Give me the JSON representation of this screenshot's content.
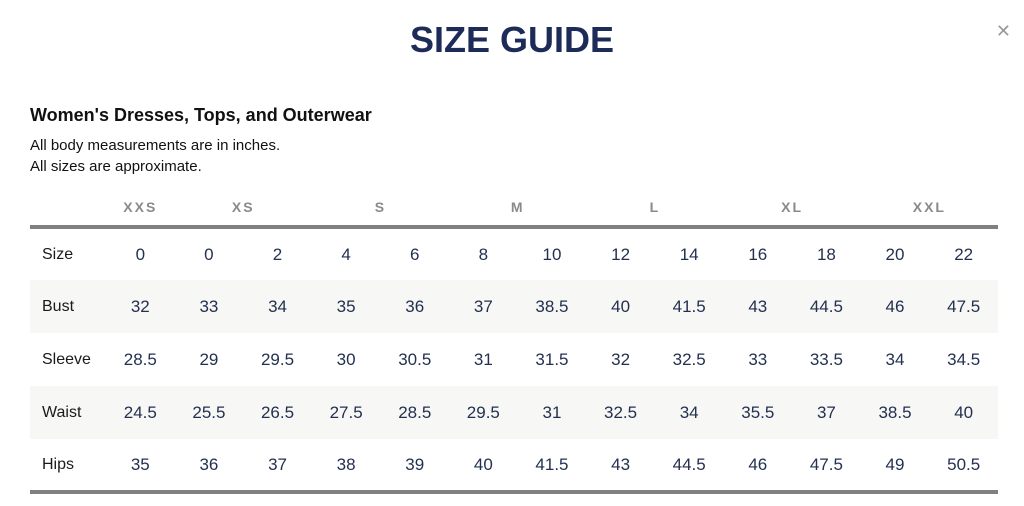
{
  "modal": {
    "close_icon": "✕"
  },
  "title": "SIZE GUIDE",
  "section": {
    "heading": "Women's Dresses, Tops, and Outerwear",
    "notes": {
      "line1": "All body measurements are in inches.",
      "line2": "All sizes are approximate."
    }
  },
  "table": {
    "size_groups": [
      {
        "label": "XXS",
        "span": 1
      },
      {
        "label": "XS",
        "span": 2
      },
      {
        "label": "S",
        "span": 2
      },
      {
        "label": "M",
        "span": 2
      },
      {
        "label": "L",
        "span": 2
      },
      {
        "label": "XL",
        "span": 2
      },
      {
        "label": "XXL",
        "span": 2
      }
    ],
    "rows": [
      {
        "label": "Size",
        "values": [
          "0",
          "0",
          "2",
          "4",
          "6",
          "8",
          "10",
          "12",
          "14",
          "16",
          "18",
          "20",
          "22"
        ]
      },
      {
        "label": "Bust",
        "values": [
          "32",
          "33",
          "34",
          "35",
          "36",
          "37",
          "38.5",
          "40",
          "41.5",
          "43",
          "44.5",
          "46",
          "47.5"
        ]
      },
      {
        "label": "Sleeve",
        "values": [
          "28.5",
          "29",
          "29.5",
          "30",
          "30.5",
          "31",
          "31.5",
          "32",
          "32.5",
          "33",
          "33.5",
          "34",
          "34.5"
        ]
      },
      {
        "label": "Waist",
        "values": [
          "24.5",
          "25.5",
          "26.5",
          "27.5",
          "28.5",
          "29.5",
          "31",
          "32.5",
          "34",
          "35.5",
          "37",
          "38.5",
          "40"
        ]
      },
      {
        "label": "Hips",
        "values": [
          "35",
          "36",
          "37",
          "38",
          "39",
          "40",
          "41.5",
          "43",
          "44.5",
          "46",
          "47.5",
          "49",
          "50.5"
        ]
      }
    ]
  },
  "colors": {
    "title_navy": "#1c2b57",
    "value_navy": "#23304f",
    "group_header_gray": "#8a8a8a",
    "border_gray": "#808080",
    "row_stripe": "#f7f7f6",
    "close_gray": "#9a9a9a"
  }
}
